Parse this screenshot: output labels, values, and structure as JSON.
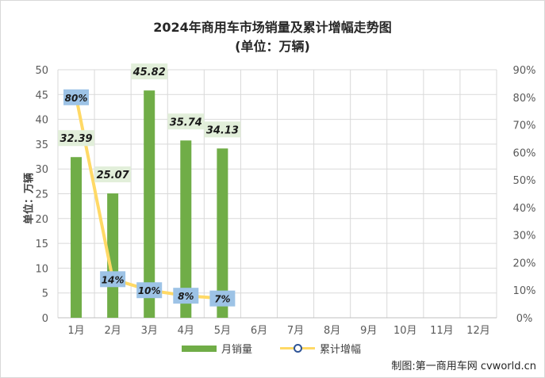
{
  "title": "2024年商用车市场销量及累计增幅走势图",
  "subtitle": "(单位：万辆)",
  "credit": "制图:第一商用车网 cvworld.cn",
  "chart_data": {
    "type": "bar",
    "ylabel": "单位：万辆",
    "categories": [
      "1月",
      "2月",
      "3月",
      "4月",
      "5月",
      "6月",
      "7月",
      "8月",
      "9月",
      "10月",
      "11月",
      "12月"
    ],
    "series": [
      {
        "name": "月销量",
        "type": "bar",
        "axis": "left",
        "values": [
          32.39,
          25.07,
          45.82,
          35.74,
          34.13,
          null,
          null,
          null,
          null,
          null,
          null,
          null
        ],
        "labels": [
          "32.39",
          "25.07",
          "45.82",
          "35.74",
          "34.13"
        ],
        "color": "#70ad47"
      },
      {
        "name": "累计增幅",
        "type": "line",
        "axis": "right",
        "values": [
          80,
          14,
          10,
          8,
          7,
          null,
          null,
          null,
          null,
          null,
          null,
          null
        ],
        "labels": [
          "80%",
          "14%",
          "10%",
          "8%",
          "7%"
        ],
        "color": "#ffd966"
      }
    ],
    "ylim_left": [
      0,
      50
    ],
    "yticks_left": [
      "0",
      "5",
      "10",
      "15",
      "20",
      "25",
      "30",
      "35",
      "40",
      "45",
      "50"
    ],
    "ylim_right": [
      0,
      90
    ],
    "yticks_right": [
      "0%",
      "10%",
      "20%",
      "30%",
      "40%",
      "50%",
      "60%",
      "70%",
      "80%",
      "90%"
    ],
    "grid": true,
    "legend": "bottom"
  }
}
